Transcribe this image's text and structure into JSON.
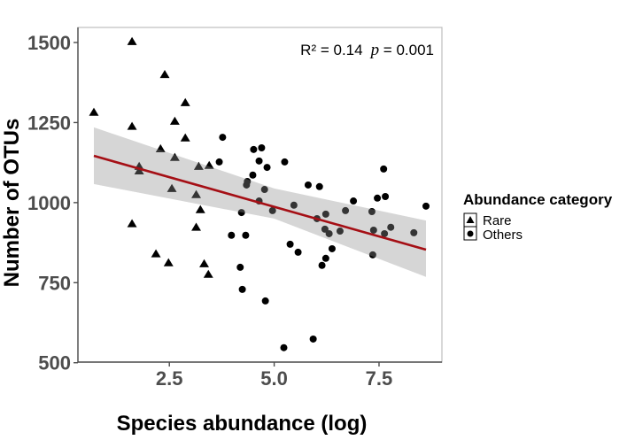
{
  "chart_data": {
    "type": "scatter",
    "title": "",
    "xlabel": "Species abundance (log)",
    "ylabel": "Number of OTUs",
    "xlim": [
      0.32,
      9.0
    ],
    "ylim": [
      502,
      1547
    ],
    "x_ticks": [
      2.5,
      5.0,
      7.5
    ],
    "x_tick_labels": [
      "2.5",
      "5.0",
      "7.5"
    ],
    "y_ticks": [
      500,
      750,
      1000,
      1250,
      1500
    ],
    "y_tick_labels": [
      "500",
      "750",
      "1000",
      "1250",
      "1500"
    ],
    "grid": false,
    "annotation": {
      "r2_text": "R² = 0.14",
      "p_symbol": "p",
      "p_text": " = 0.001"
    },
    "legend": {
      "title": "Abundance category",
      "placement": "right",
      "entries": [
        {
          "label": "Rare",
          "shape": "triangle"
        },
        {
          "label": "Others",
          "shape": "circle"
        }
      ]
    },
    "colors": {
      "points": "#000000",
      "fit_line": "#a50f15",
      "ci_band": "#d3d3d3",
      "panel_border": "#bdbdbd",
      "axis_line": "#4d4d4d"
    },
    "regression": {
      "x": [
        0.7,
        8.62
      ],
      "y": [
        1146,
        853
      ],
      "ci": {
        "x": [
          0.7,
          5.0,
          8.62
        ],
        "lower": [
          1058,
          950,
          768
        ],
        "upper": [
          1235,
          1044,
          944
        ]
      }
    },
    "series": [
      {
        "name": "Rare",
        "shape": "triangle",
        "x": [
          1.61,
          2.39,
          2.88,
          0.7,
          2.63,
          1.61,
          2.88,
          2.29,
          2.63,
          1.78,
          1.78,
          3.2,
          3.45,
          2.56,
          3.14,
          3.24,
          1.61,
          3.14,
          2.18,
          2.48,
          3.33,
          3.43
        ],
        "y": [
          1503,
          1400,
          1312,
          1282,
          1254,
          1238,
          1202,
          1168,
          1141,
          1113,
          1099,
          1113,
          1116,
          1044,
          1025,
          978,
          934,
          923,
          840,
          812,
          809,
          776
        ]
      },
      {
        "name": "Others",
        "shape": "circle",
        "x": [
          3.77,
          3.69,
          4.51,
          4.7,
          4.64,
          4.83,
          5.25,
          4.49,
          4.36,
          4.34,
          4.77,
          4.64,
          4.96,
          5.47,
          4.22,
          5.81,
          6.08,
          3.98,
          4.32,
          5.38,
          5.57,
          4.19,
          4.24,
          4.79,
          5.93,
          5.23,
          7.61,
          6.89,
          7.46,
          7.65,
          8.62,
          6.23,
          6.02,
          6.7,
          7.33,
          6.21,
          6.31,
          6.57,
          7.37,
          7.63,
          7.78,
          8.33,
          6.38,
          6.23,
          6.14,
          7.35
        ],
        "y": [
          1204,
          1127,
          1166,
          1171,
          1130,
          1110,
          1127,
          1086,
          1066,
          1055,
          1041,
          1005,
          975,
          992,
          969,
          1055,
          1050,
          898,
          898,
          870,
          845,
          798,
          729,
          693,
          574,
          547,
          1105,
          1005,
          1014,
          1019,
          989,
          964,
          950,
          975,
          972,
          917,
          903,
          911,
          914,
          903,
          923,
          906,
          856,
          826,
          804,
          837
        ]
      }
    ]
  }
}
